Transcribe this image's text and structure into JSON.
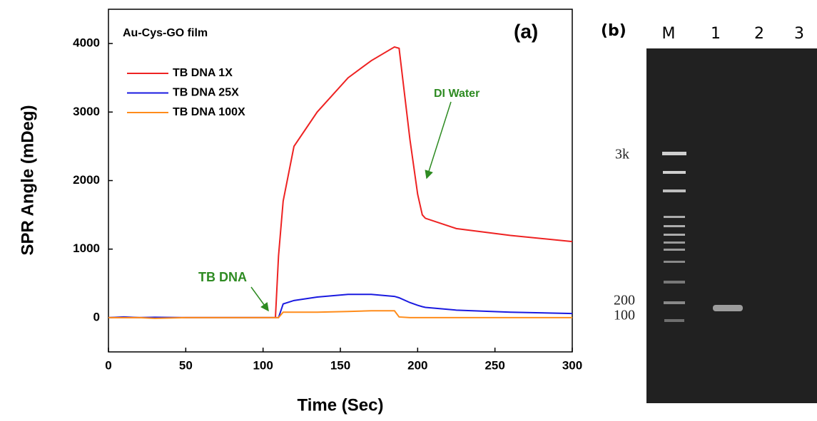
{
  "chart_data": {
    "type": "line",
    "annotations": [
      "Au-Cys-GO film",
      "(a)",
      "DI Water",
      "TB DNA"
    ],
    "x_label": "Time (Sec)",
    "y_label": "SPR Angle (mDeg)",
    "x": [
      0,
      10,
      20,
      30,
      50,
      100,
      105,
      108,
      110,
      113,
      120,
      135,
      155,
      170,
      185,
      188,
      195,
      200,
      203,
      205,
      225,
      260,
      300
    ],
    "series": [
      {
        "name": "TB DNA 1X",
        "color": "#ee2222",
        "values": [
          0,
          0,
          0,
          0,
          0,
          0,
          0,
          0,
          900,
          1700,
          2500,
          3000,
          3500,
          3750,
          3950,
          3930,
          2600,
          1800,
          1500,
          1450,
          1300,
          1200,
          1110
        ]
      },
      {
        "name": "TB DNA 25X",
        "color": "#1a1ae0",
        "values": [
          0,
          10,
          0,
          5,
          0,
          0,
          0,
          0,
          0,
          200,
          250,
          300,
          340,
          340,
          310,
          290,
          220,
          180,
          160,
          150,
          110,
          80,
          60
        ]
      },
      {
        "name": "TB DNA 100X",
        "color": "#ff8c1a",
        "values": [
          0,
          0,
          0,
          -10,
          0,
          0,
          0,
          0,
          0,
          80,
          80,
          80,
          90,
          100,
          100,
          10,
          0,
          0,
          0,
          0,
          0,
          0,
          0
        ]
      }
    ],
    "xlim": [
      0,
      300
    ],
    "xticks": [
      0,
      50,
      100,
      150,
      200,
      250,
      300
    ],
    "ylim": [
      -500,
      4500
    ],
    "yticks": [
      0,
      1000,
      2000,
      3000,
      4000
    ]
  },
  "gel": {
    "panel_label": "(b)",
    "lanes": [
      "M",
      "1",
      "2",
      "3"
    ],
    "markers": [
      "3k",
      "200",
      "100"
    ]
  }
}
